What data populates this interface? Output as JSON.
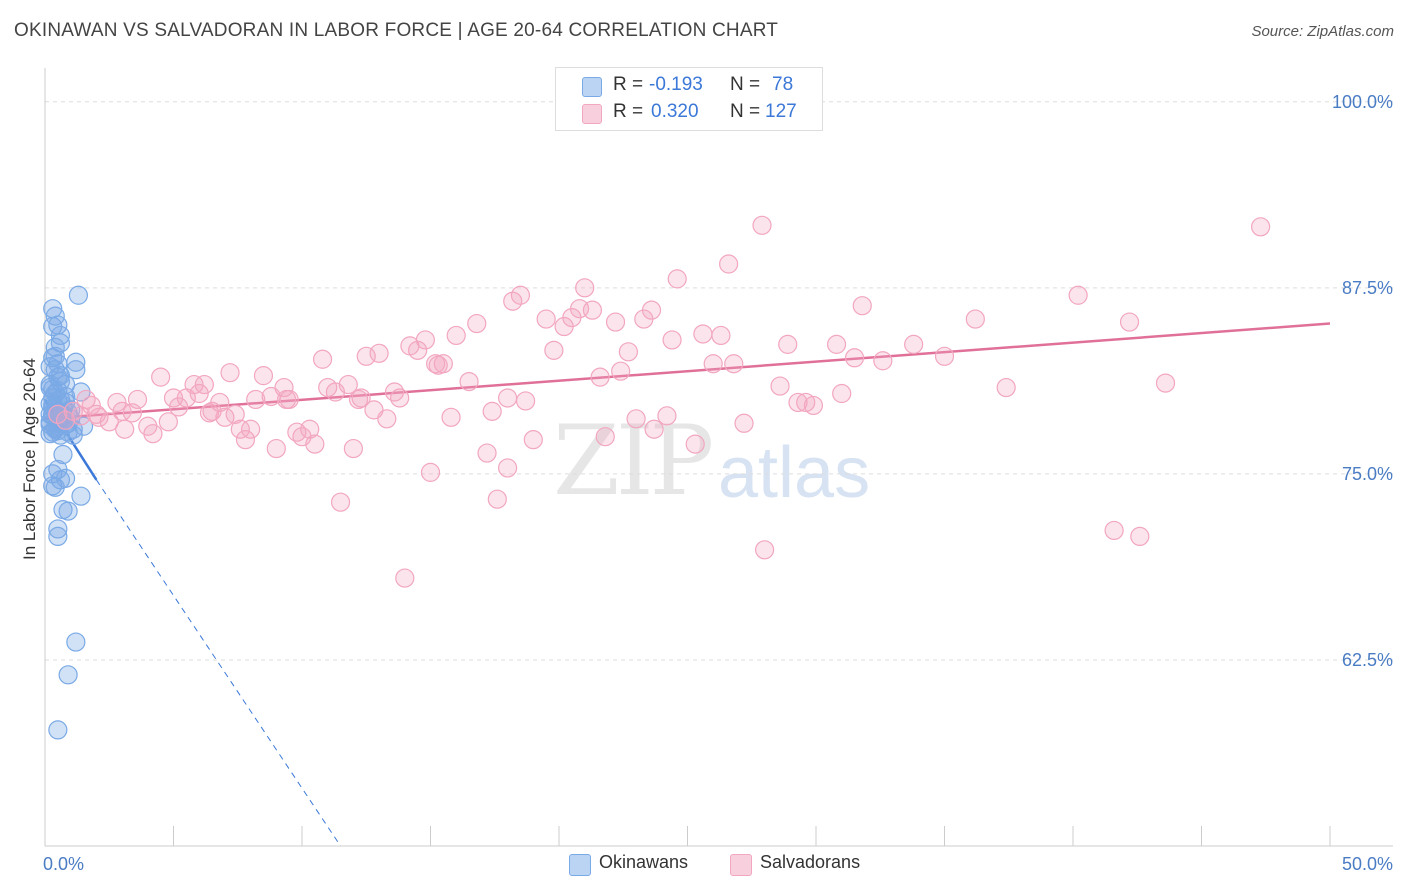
{
  "title": "OKINAWAN VS SALVADORAN IN LABOR FORCE | AGE 20-64 CORRELATION CHART",
  "source": "Source: ZipAtlas.com",
  "watermark": {
    "zip": "ZIP",
    "atlas": "atlas"
  },
  "stats": [
    {
      "r_label": "R =",
      "r_value": "-0.193",
      "n_label": "N =",
      "n_value": "78",
      "color": "#7aaae6"
    },
    {
      "r_label": "R =",
      "r_value": "0.320",
      "n_label": "N =",
      "n_value": "127",
      "color": "#f2a6bf"
    }
  ],
  "legend": [
    {
      "label": "Okinawans",
      "color": "#7aaae6"
    },
    {
      "label": "Salvadorans",
      "color": "#f2a6bf"
    }
  ],
  "chart_data": {
    "type": "scatter",
    "title": "OKINAWAN VS SALVADORAN IN LABOR FORCE | AGE 20-64 CORRELATION CHART",
    "xlabel": "",
    "ylabel": "In Labor Force | Age 20-64",
    "xlim": [
      0,
      50
    ],
    "ylim": [
      50,
      102
    ],
    "x_tick_labels": [
      "0.0%",
      "50.0%"
    ],
    "y_ticks": [
      62.5,
      75.0,
      87.5,
      100.0
    ],
    "y_tick_labels": [
      "62.5%",
      "75.0%",
      "87.5%",
      "100.0%"
    ],
    "grid": true,
    "series": [
      {
        "name": "Okinawans",
        "color": "#7aaae6",
        "trend": {
          "x0": 0.0,
          "y0": 80.0,
          "x1": 2.0,
          "y1": 74.6,
          "dash_to_x": 11.5,
          "dash_to_y": 50.0,
          "color": "#3b78d8"
        },
        "points": [
          [
            0.3,
            79.0
          ],
          [
            0.5,
            81.5
          ],
          [
            0.2,
            78.5
          ],
          [
            0.8,
            80.2
          ],
          [
            0.4,
            82.0
          ],
          [
            0.6,
            78.8
          ],
          [
            0.3,
            77.8
          ],
          [
            1.0,
            79.3
          ],
          [
            0.2,
            80.8
          ],
          [
            0.5,
            78.2
          ],
          [
            0.7,
            79.6
          ],
          [
            0.4,
            80.4
          ],
          [
            0.3,
            78.9
          ],
          [
            0.6,
            81.2
          ],
          [
            0.9,
            78.4
          ],
          [
            0.2,
            79.7
          ],
          [
            0.5,
            80.6
          ],
          [
            0.3,
            82.8
          ],
          [
            0.4,
            83.5
          ],
          [
            0.6,
            84.3
          ],
          [
            0.3,
            84.9
          ],
          [
            0.4,
            85.6
          ],
          [
            0.3,
            86.1
          ],
          [
            0.5,
            85.0
          ],
          [
            1.3,
            87.0
          ],
          [
            0.6,
            83.8
          ],
          [
            0.5,
            82.4
          ],
          [
            1.2,
            82.5
          ],
          [
            0.8,
            81.0
          ],
          [
            0.7,
            79.0
          ],
          [
            1.1,
            78.0
          ],
          [
            1.4,
            80.5
          ],
          [
            0.9,
            77.8
          ],
          [
            1.5,
            78.2
          ],
          [
            0.2,
            77.7
          ],
          [
            0.4,
            78.1
          ],
          [
            0.7,
            76.3
          ],
          [
            0.5,
            75.3
          ],
          [
            0.3,
            75.0
          ],
          [
            0.8,
            74.7
          ],
          [
            0.6,
            74.6
          ],
          [
            0.3,
            74.2
          ],
          [
            0.4,
            74.1
          ],
          [
            1.4,
            73.5
          ],
          [
            0.7,
            72.6
          ],
          [
            0.9,
            72.5
          ],
          [
            0.5,
            71.3
          ],
          [
            0.5,
            70.8
          ],
          [
            1.2,
            63.7
          ],
          [
            0.9,
            61.5
          ],
          [
            0.5,
            57.8
          ],
          [
            0.2,
            81.0
          ],
          [
            0.4,
            79.2
          ],
          [
            0.6,
            78.6
          ],
          [
            1.0,
            78.7
          ],
          [
            0.3,
            80.1
          ],
          [
            0.5,
            79.9
          ],
          [
            0.2,
            82.2
          ],
          [
            1.2,
            82.0
          ],
          [
            0.8,
            78.3
          ],
          [
            0.4,
            78.0
          ],
          [
            0.6,
            80.0
          ],
          [
            0.3,
            79.4
          ],
          [
            0.7,
            78.5
          ],
          [
            0.5,
            77.9
          ],
          [
            0.9,
            79.1
          ],
          [
            0.2,
            78.3
          ],
          [
            0.6,
            77.6
          ],
          [
            1.1,
            77.6
          ],
          [
            0.3,
            80.7
          ],
          [
            0.4,
            82.9
          ],
          [
            0.8,
            79.8
          ],
          [
            0.5,
            78.4
          ],
          [
            0.3,
            79.6
          ],
          [
            0.2,
            79.0
          ],
          [
            0.6,
            81.6
          ],
          [
            0.4,
            79.4
          ],
          [
            0.7,
            78.9
          ]
        ]
      },
      {
        "name": "Salvadorans",
        "color": "#f2a6bf",
        "trend": {
          "x0": 0.0,
          "y0": 78.7,
          "x1": 50.0,
          "y1": 85.1,
          "color": "#e07098"
        },
        "points": [
          [
            0.5,
            79.0
          ],
          [
            0.8,
            78.6
          ],
          [
            1.1,
            79.2
          ],
          [
            1.4,
            78.9
          ],
          [
            1.8,
            79.6
          ],
          [
            2.1,
            78.8
          ],
          [
            2.5,
            78.5
          ],
          [
            2.8,
            79.8
          ],
          [
            3.1,
            78.0
          ],
          [
            3.4,
            79.1
          ],
          [
            3.6,
            80.0
          ],
          [
            4.0,
            78.2
          ],
          [
            4.2,
            77.7
          ],
          [
            4.5,
            81.5
          ],
          [
            4.8,
            78.5
          ],
          [
            5.0,
            80.1
          ],
          [
            5.2,
            79.5
          ],
          [
            5.5,
            80.1
          ],
          [
            5.8,
            81.0
          ],
          [
            6.0,
            80.4
          ],
          [
            6.2,
            81.0
          ],
          [
            6.5,
            79.2
          ],
          [
            6.8,
            79.8
          ],
          [
            7.0,
            78.8
          ],
          [
            7.2,
            81.8
          ],
          [
            7.4,
            79.0
          ],
          [
            7.6,
            78.0
          ],
          [
            7.8,
            77.3
          ],
          [
            8.0,
            78.0
          ],
          [
            8.2,
            80.0
          ],
          [
            8.5,
            81.6
          ],
          [
            8.8,
            80.2
          ],
          [
            9.0,
            76.7
          ],
          [
            9.3,
            80.8
          ],
          [
            9.5,
            80.0
          ],
          [
            9.8,
            77.8
          ],
          [
            10.0,
            77.5
          ],
          [
            10.3,
            78.0
          ],
          [
            10.5,
            77.0
          ],
          [
            10.8,
            82.7
          ],
          [
            11.0,
            80.8
          ],
          [
            11.3,
            80.5
          ],
          [
            11.5,
            73.1
          ],
          [
            11.8,
            81.0
          ],
          [
            12.0,
            76.7
          ],
          [
            12.3,
            80.1
          ],
          [
            12.5,
            82.9
          ],
          [
            12.8,
            79.3
          ],
          [
            13.0,
            83.1
          ],
          [
            13.3,
            78.7
          ],
          [
            13.6,
            80.5
          ],
          [
            13.8,
            80.1
          ],
          [
            14.0,
            68.0
          ],
          [
            14.2,
            83.6
          ],
          [
            14.5,
            83.3
          ],
          [
            14.8,
            84.0
          ],
          [
            15.0,
            75.1
          ],
          [
            15.3,
            82.3
          ],
          [
            15.5,
            82.4
          ],
          [
            15.8,
            78.8
          ],
          [
            16.0,
            84.3
          ],
          [
            16.5,
            81.2
          ],
          [
            16.8,
            85.1
          ],
          [
            17.2,
            76.4
          ],
          [
            17.4,
            79.2
          ],
          [
            17.6,
            73.3
          ],
          [
            18.0,
            75.4
          ],
          [
            18.2,
            86.6
          ],
          [
            18.5,
            87.0
          ],
          [
            18.7,
            79.9
          ],
          [
            19.0,
            77.3
          ],
          [
            19.5,
            85.4
          ],
          [
            19.8,
            83.3
          ],
          [
            20.2,
            84.9
          ],
          [
            20.5,
            85.5
          ],
          [
            20.8,
            86.1
          ],
          [
            21.0,
            87.5
          ],
          [
            21.3,
            86.0
          ],
          [
            21.6,
            81.5
          ],
          [
            21.8,
            77.5
          ],
          [
            22.2,
            85.2
          ],
          [
            22.4,
            81.9
          ],
          [
            22.7,
            83.2
          ],
          [
            23.0,
            78.7
          ],
          [
            23.3,
            85.4
          ],
          [
            23.6,
            86.0
          ],
          [
            24.2,
            78.9
          ],
          [
            24.4,
            84.0
          ],
          [
            24.6,
            88.1
          ],
          [
            25.3,
            77.0
          ],
          [
            25.6,
            84.4
          ],
          [
            26.0,
            82.4
          ],
          [
            26.3,
            84.3
          ],
          [
            26.6,
            89.1
          ],
          [
            26.8,
            82.4
          ],
          [
            27.2,
            78.4
          ],
          [
            28.0,
            69.9
          ],
          [
            27.9,
            91.7
          ],
          [
            28.6,
            80.9
          ],
          [
            28.9,
            83.7
          ],
          [
            29.3,
            79.8
          ],
          [
            29.6,
            79.8
          ],
          [
            29.9,
            79.6
          ],
          [
            30.8,
            83.7
          ],
          [
            31.0,
            80.4
          ],
          [
            31.5,
            82.8
          ],
          [
            31.8,
            86.3
          ],
          [
            32.6,
            82.6
          ],
          [
            33.8,
            83.7
          ],
          [
            35.0,
            82.9
          ],
          [
            36.2,
            85.4
          ],
          [
            37.4,
            80.8
          ],
          [
            40.2,
            87.0
          ],
          [
            41.6,
            71.2
          ],
          [
            42.2,
            85.2
          ],
          [
            42.6,
            70.8
          ],
          [
            43.6,
            81.1
          ],
          [
            47.3,
            91.6
          ],
          [
            2.0,
            79.0
          ],
          [
            1.6,
            80.0
          ],
          [
            3.0,
            79.2
          ],
          [
            9.4,
            80.0
          ],
          [
            15.2,
            82.4
          ],
          [
            23.7,
            78.0
          ],
          [
            18.0,
            80.1
          ],
          [
            6.4,
            79.1
          ],
          [
            12.2,
            80.0
          ]
        ]
      }
    ]
  }
}
